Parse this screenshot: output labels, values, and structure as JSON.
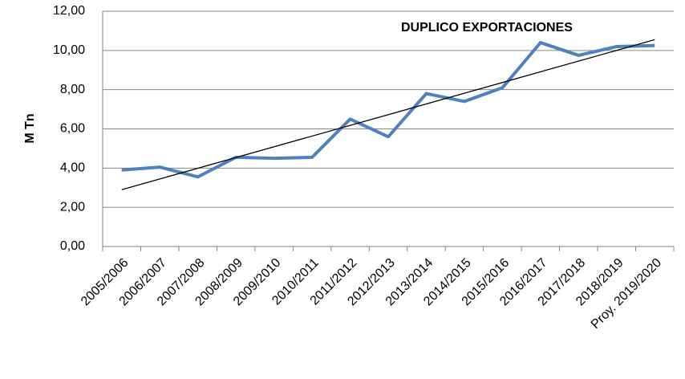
{
  "chart_data": {
    "type": "line",
    "annotation": "DUPLICO EXPORTACIONES",
    "y_label": "M Tn",
    "categories": [
      "2005/2006",
      "2006/2007",
      "2007/2008",
      "2008/2009",
      "2009/2010",
      "2010/2011",
      "2011/2012",
      "2012/2013",
      "2013/2014",
      "2014/2015",
      "2015/2016",
      "2016/2017",
      "2017/2018",
      "2018/2019",
      "Proy. 2019/2020"
    ],
    "values": [
      3.9,
      4.05,
      3.55,
      4.55,
      4.5,
      4.55,
      6.5,
      5.6,
      7.8,
      7.4,
      8.1,
      10.4,
      9.75,
      10.2,
      10.25
    ],
    "color": "#4f81bd",
    "trend": {
      "start": 2.9,
      "end": 10.55,
      "color": "#000000"
    },
    "ylim": [
      0,
      12
    ],
    "yticks": [
      {
        "value": 0,
        "label": "0,00"
      },
      {
        "value": 2,
        "label": "2,00"
      },
      {
        "value": 4,
        "label": "4,00"
      },
      {
        "value": 6,
        "label": "6,00"
      },
      {
        "value": 8,
        "label": "8,00"
      },
      {
        "value": 10,
        "label": "10,00"
      },
      {
        "value": 12,
        "label": "12,00"
      }
    ],
    "grid": true
  }
}
